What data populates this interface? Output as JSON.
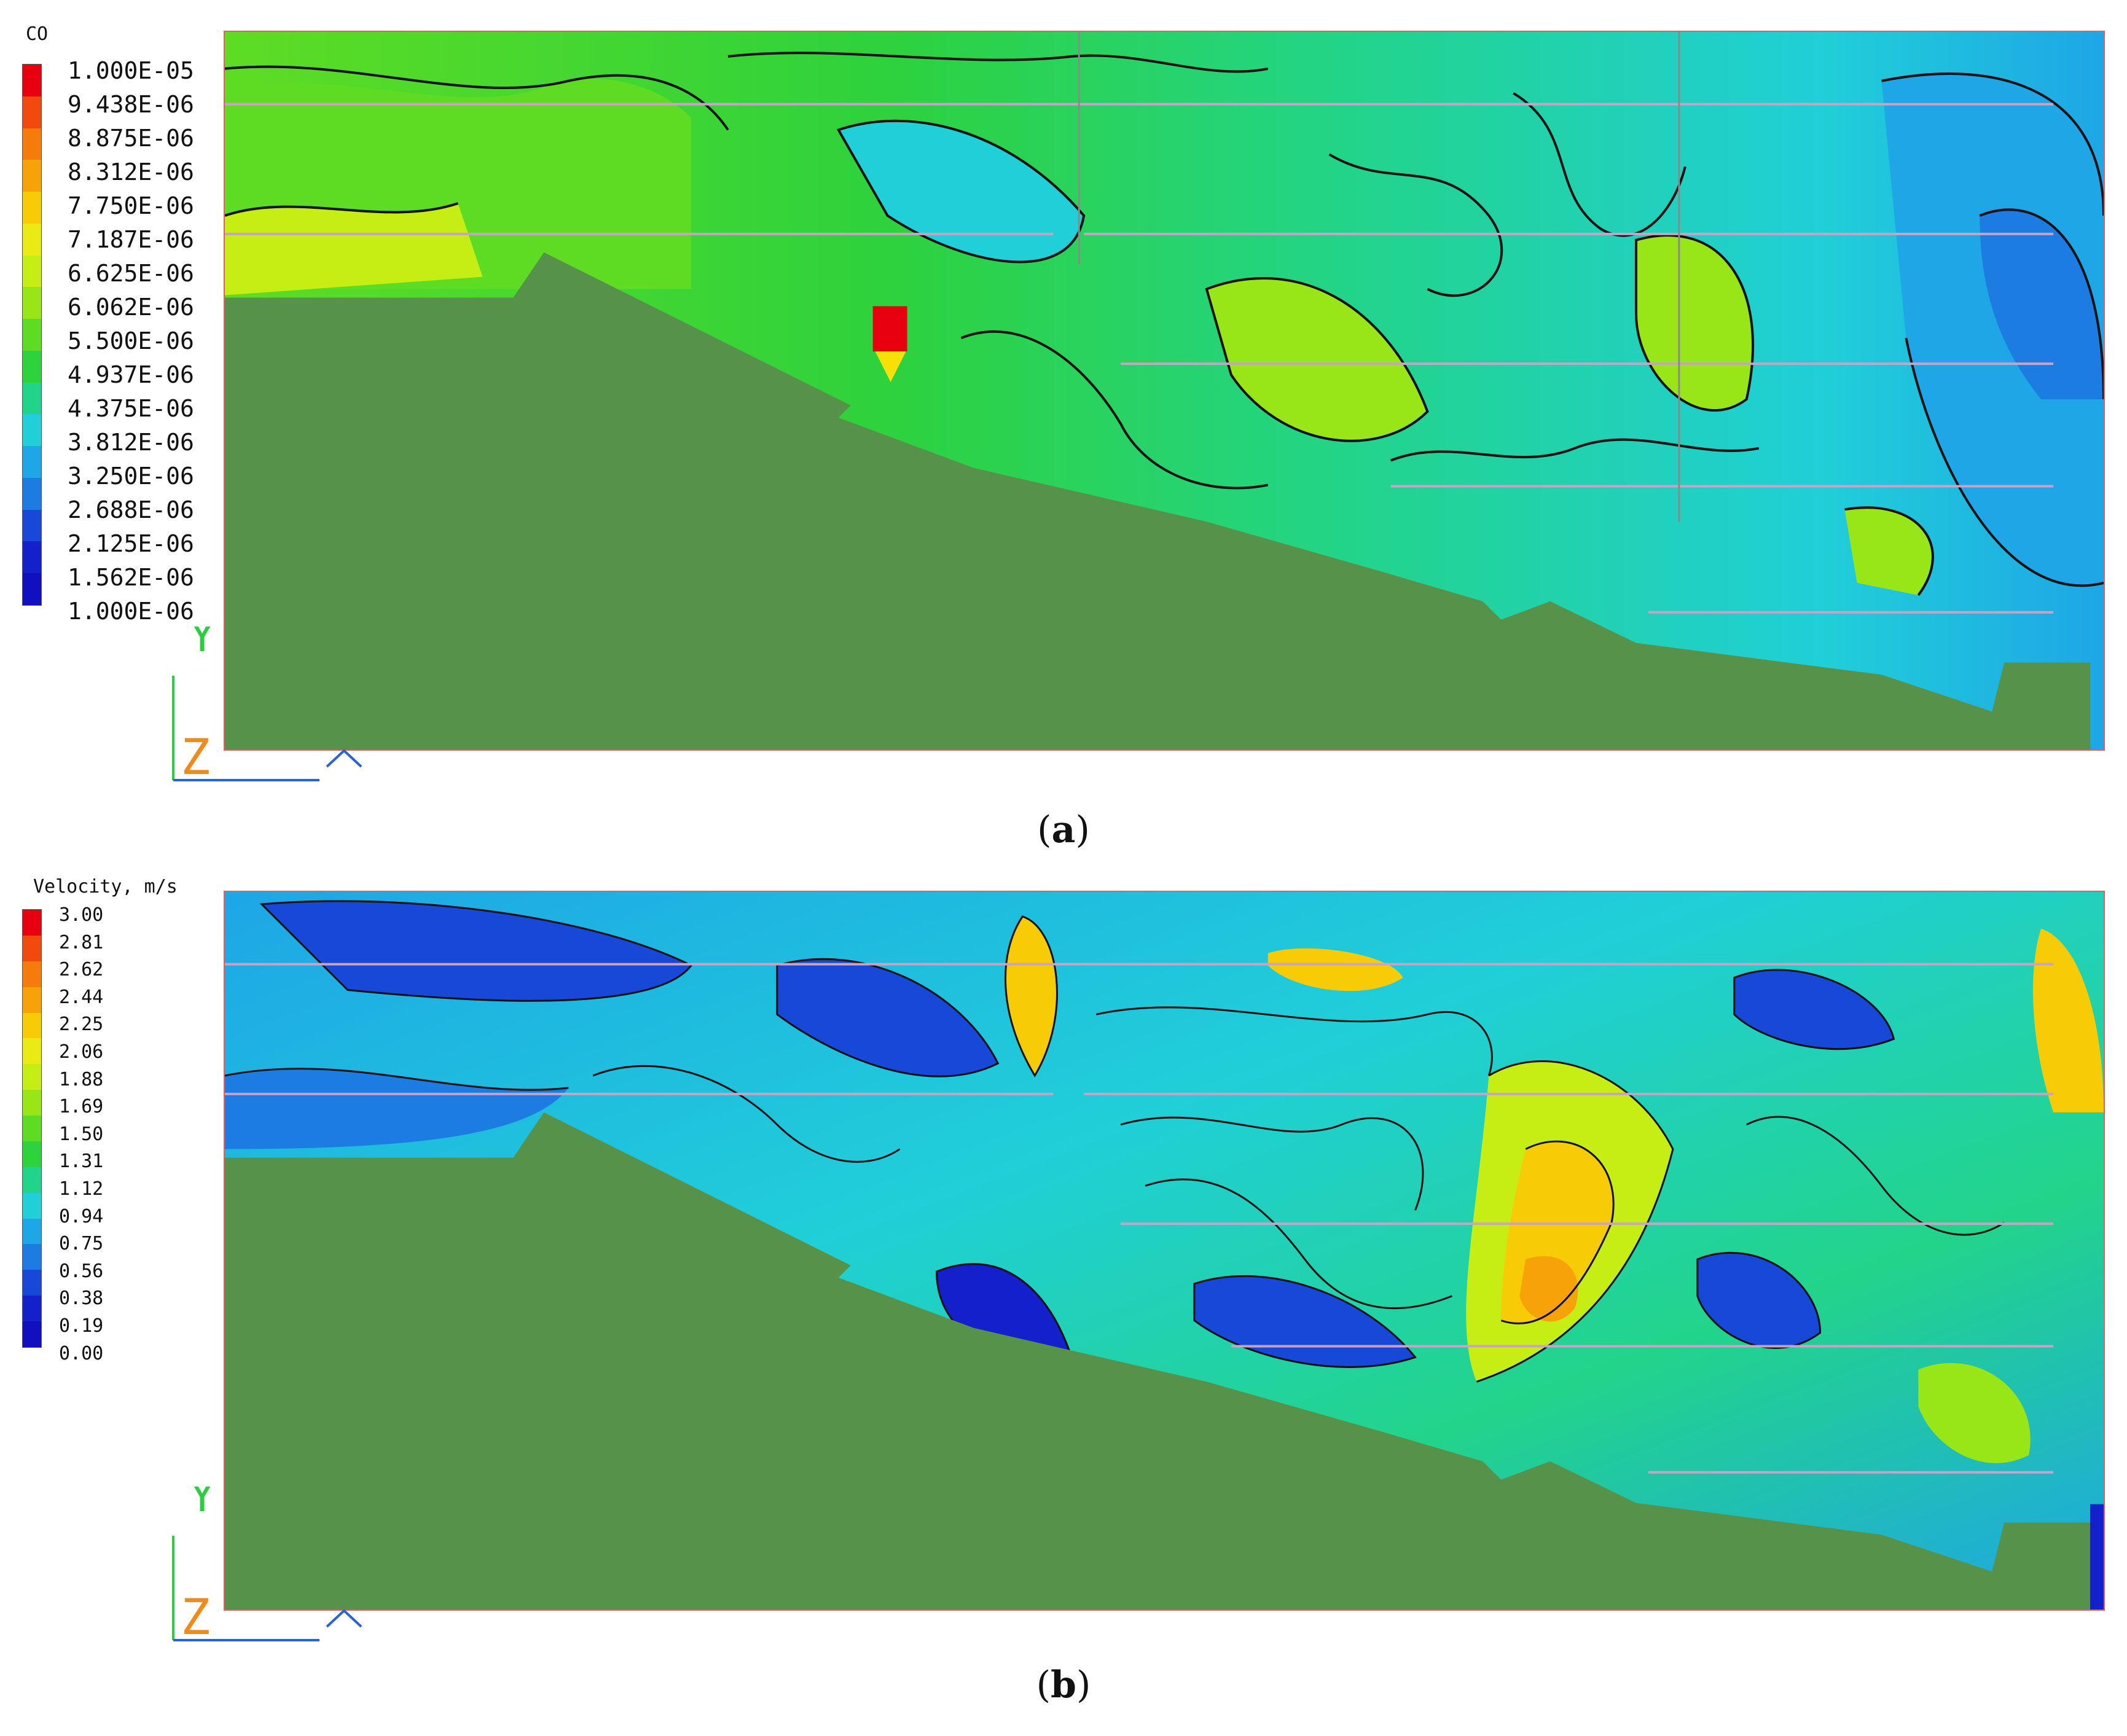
{
  "panel_a": {
    "legend_title": "CO",
    "legend_labels": [
      "1.000E-05",
      "9.438E-06",
      "8.875E-06",
      "8.312E-06",
      "7.750E-06",
      "7.187E-06",
      "6.625E-06",
      "6.062E-06",
      "5.500E-06",
      "4.937E-06",
      "4.375E-06",
      "3.812E-06",
      "3.250E-06",
      "2.688E-06",
      "2.125E-06",
      "1.562E-06",
      "1.000E-06"
    ],
    "legend_colors": [
      "#e8000f",
      "#f24a0c",
      "#f57c0a",
      "#f8a20a",
      "#f7cc06",
      "#eaea14",
      "#c6ee14",
      "#99e618",
      "#5edc24",
      "#2ed23c",
      "#22d48a",
      "#20cfd8",
      "#1ea6e6",
      "#1c7ce2",
      "#1848d8",
      "#1420cc",
      "#1010c0"
    ],
    "caption_letter": "a"
  },
  "panel_b": {
    "legend_title": "Velocity, m/s",
    "legend_labels": [
      "3.00",
      "2.81",
      "2.62",
      "2.44",
      "2.25",
      "2.06",
      "1.88",
      "1.69",
      "1.50",
      "1.31",
      "1.12",
      "0.94",
      "0.75",
      "0.56",
      "0.38",
      "0.19",
      "0.00"
    ],
    "legend_colors": [
      "#e8000f",
      "#f24a0c",
      "#f57c0a",
      "#f8a20a",
      "#f7cc06",
      "#eaea14",
      "#c6ee14",
      "#99e618",
      "#5edc24",
      "#2ed23c",
      "#22d48a",
      "#20cfd8",
      "#1ea6e6",
      "#1c7ce2",
      "#1848d8",
      "#1420cc",
      "#1010c0"
    ],
    "caption_letter": "b"
  },
  "axis_icon": {
    "y": "Y",
    "z": "Z"
  },
  "colors": {
    "terrain": "#57924a",
    "plot_border": "#e06060"
  }
}
